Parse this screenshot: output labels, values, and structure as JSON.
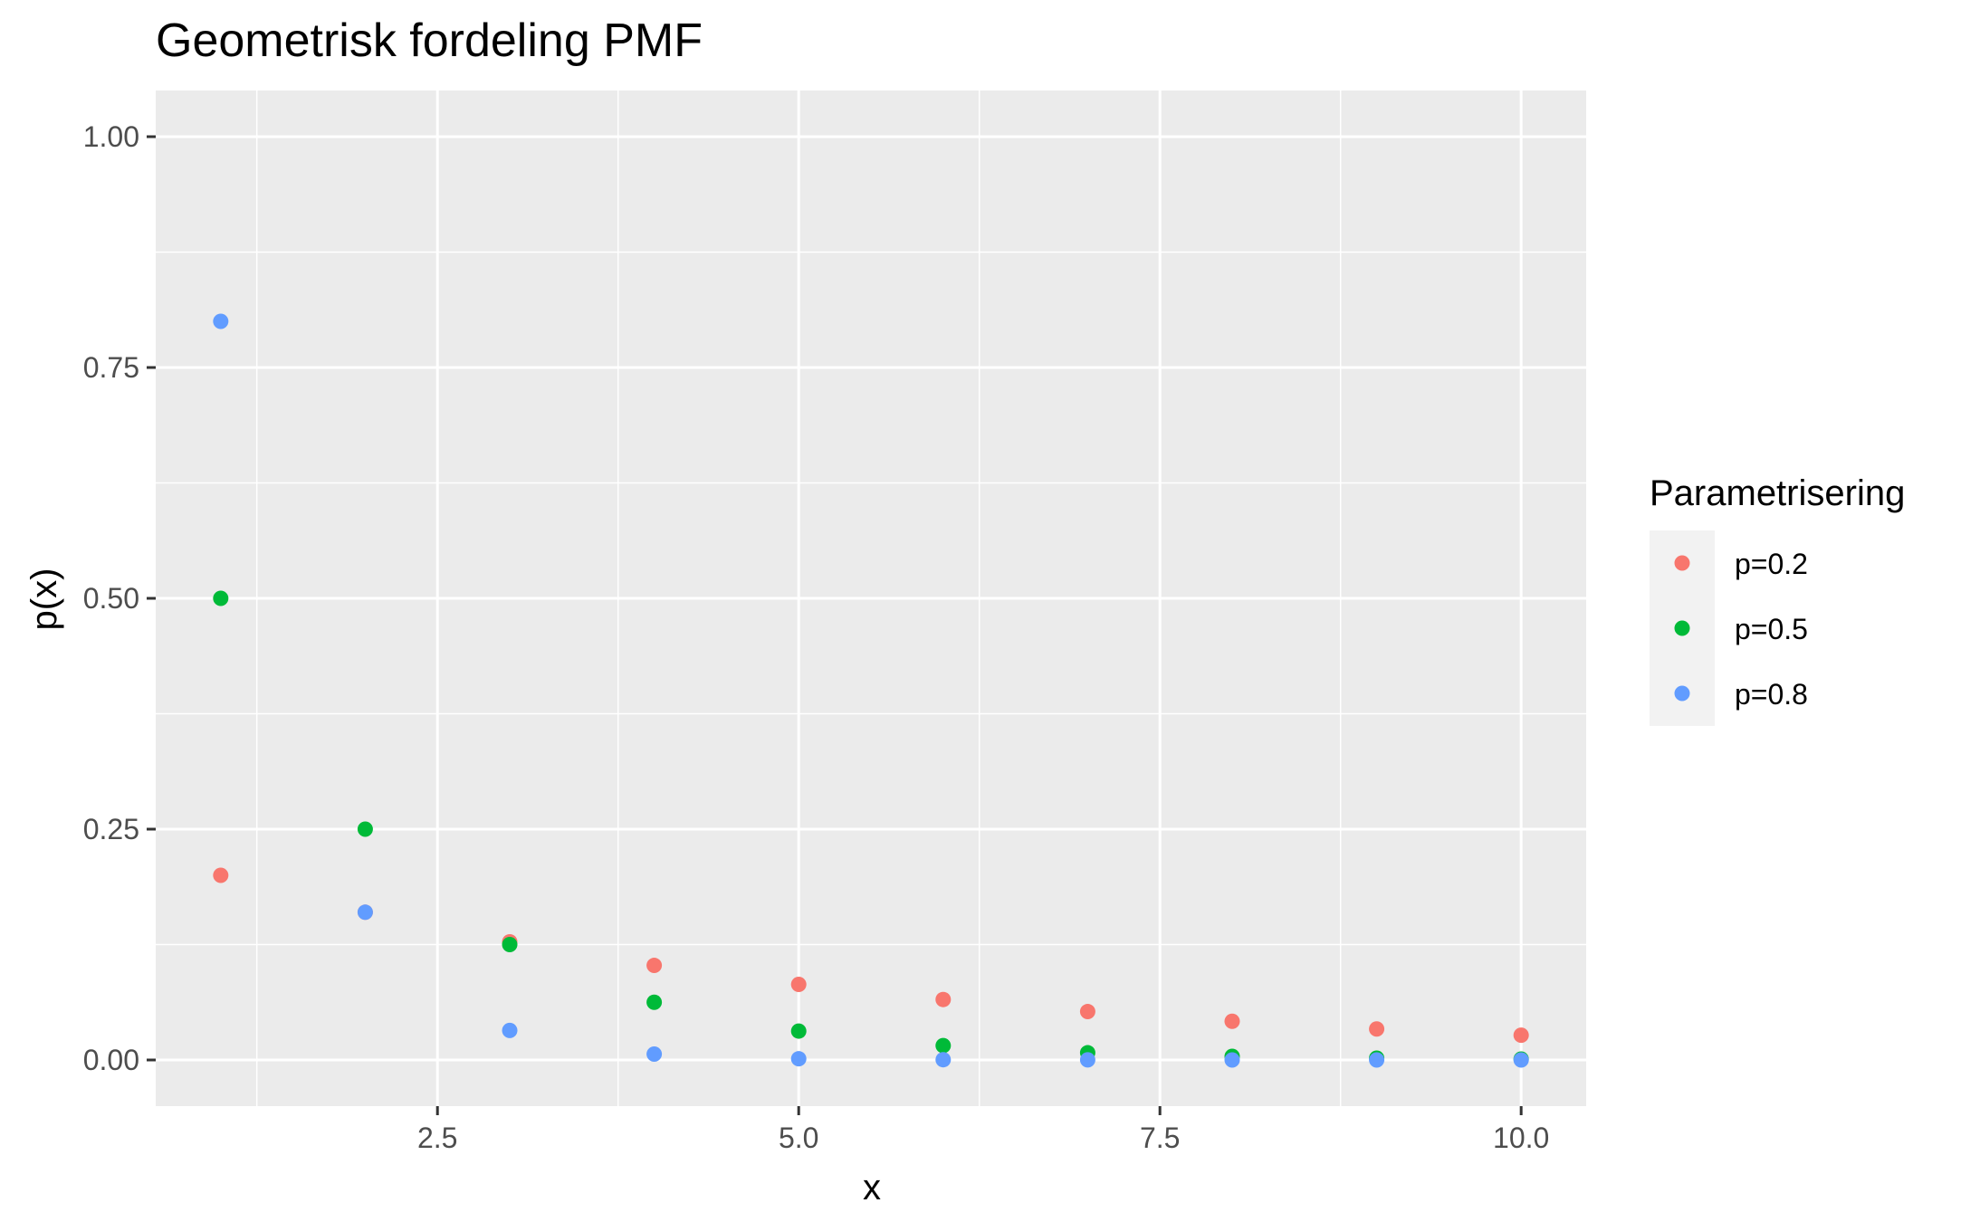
{
  "chart_data": {
    "type": "scatter",
    "title": "Geometrisk fordeling PMF",
    "xlabel": "x",
    "ylabel": "p(x)",
    "xlim": [
      0.55,
      10.45
    ],
    "ylim": [
      -0.05,
      1.05
    ],
    "x_ticks": [
      2.5,
      5.0,
      7.5,
      10.0
    ],
    "x_tick_labels": [
      "2.5",
      "5.0",
      "7.5",
      "10.0"
    ],
    "y_ticks": [
      0.0,
      0.25,
      0.5,
      0.75,
      1.0
    ],
    "y_tick_labels": [
      "0.00",
      "0.25",
      "0.50",
      "0.75",
      "1.00"
    ],
    "grid": true,
    "legend_title": "Parametrisering",
    "legend_position": "right",
    "x": [
      1,
      2,
      3,
      4,
      5,
      6,
      7,
      8,
      9,
      10
    ],
    "series": [
      {
        "name": "p=0.2",
        "color": "#F8766D",
        "values": [
          0.2,
          0.16,
          0.128,
          0.1024,
          0.0819,
          0.0655,
          0.0524,
          0.0419,
          0.0336,
          0.0268
        ]
      },
      {
        "name": "p=0.5",
        "color": "#00BA38",
        "values": [
          0.5,
          0.25,
          0.125,
          0.0625,
          0.0313,
          0.0156,
          0.0078,
          0.0039,
          0.002,
          0.001
        ]
      },
      {
        "name": "p=0.8",
        "color": "#619CFF",
        "values": [
          0.8,
          0.16,
          0.032,
          0.0064,
          0.0013,
          0.0003,
          0.0001,
          0.0,
          0.0,
          0.0
        ]
      }
    ]
  }
}
